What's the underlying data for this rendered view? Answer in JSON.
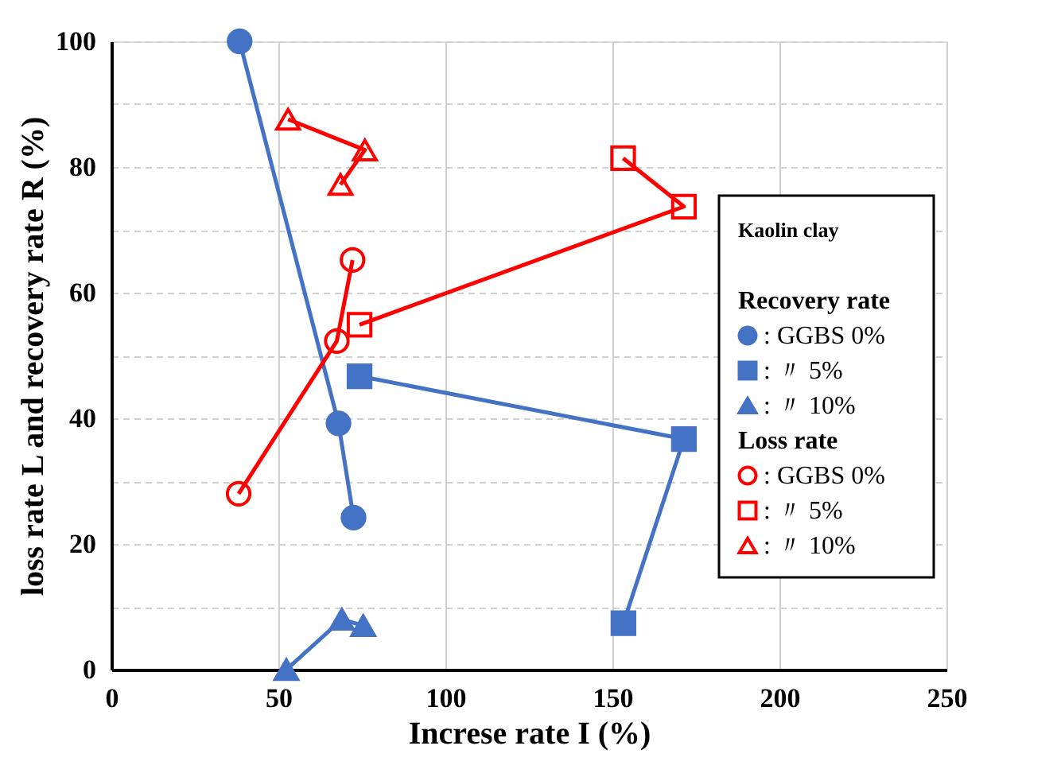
{
  "chart_data": {
    "type": "line",
    "xlabel": "Increse rate I (%)",
    "ylabel": "loss rate L and recovery rate R (%)",
    "xlim": [
      0,
      250
    ],
    "xticks": [
      0,
      50,
      100,
      150,
      200,
      250
    ],
    "ylim": [
      0,
      100
    ],
    "yticks": [
      0,
      {
        "value": 10,
        "label": null
      },
      20,
      {
        "value": 30,
        "label": null
      },
      40,
      {
        "value": 50,
        "label": null
      },
      60,
      {
        "value": 70,
        "label": null
      },
      80,
      {
        "value": 90,
        "label": null
      },
      100
    ],
    "grid": true,
    "legend": "right",
    "legend_title": "Kaolin clay",
    "line_style": "solid",
    "annotations": [
      "Recovery rate",
      "Loss rate"
    ],
    "series": [
      {
        "name": ": GGBS 0%",
        "color": "#4472c4",
        "marker": "circle",
        "x": [
          38.4,
          68,
          72.5
        ],
        "values": [
          100,
          39.2,
          24.2
        ]
      },
      {
        "name": ":  〃 5%",
        "color": "#4472c4",
        "marker": "square",
        "x": [
          74.3,
          171.4,
          153.3
        ],
        "values": [
          46.7,
          36.7,
          7.4
        ]
      },
      {
        "name": ":  〃 10%",
        "color": "#4472c4",
        "marker": "triangle",
        "x": [
          52.4,
          69,
          75.4
        ],
        "values": [
          0,
          8,
          7
        ]
      },
      {
        "name": ": GGBS 0%",
        "color": "#ff0000",
        "marker": "circle",
        "x": [
          38.1,
          67.5,
          72.2
        ],
        "values": [
          28,
          52.3,
          65.2
        ]
      },
      {
        "name": ":  〃 5%",
        "color": "#ff0000",
        "marker": "square",
        "x": [
          74.3,
          171.4,
          153.2
        ],
        "values": [
          54.9,
          73.7,
          81.4
        ]
      },
      {
        "name": ":  〃 10%",
        "color": "#ff0000",
        "marker": "triangle",
        "x": [
          52.9,
          75.9,
          68.6
        ],
        "values": [
          87.6,
          82.7,
          77.2
        ]
      }
    ]
  }
}
